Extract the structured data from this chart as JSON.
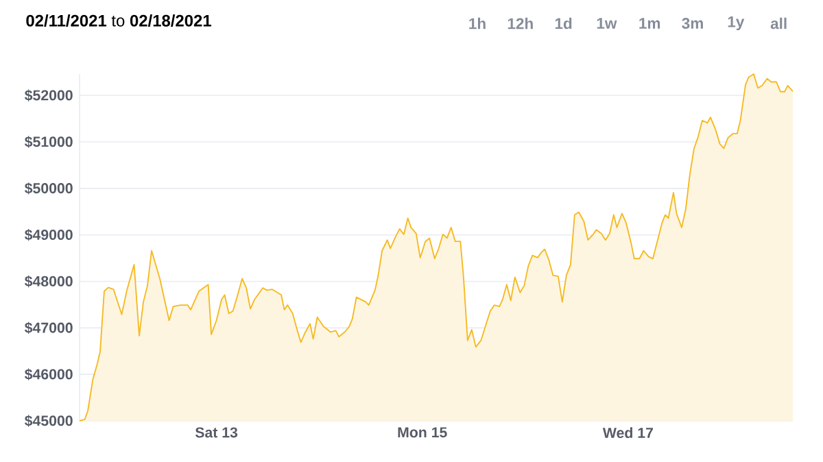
{
  "chart_data": {
    "type": "area",
    "title": "**02/11/2021** to **02/18/2021**",
    "annotations": [
      "1h",
      "12h",
      "1d",
      "1w",
      "1m",
      "3m",
      "1y",
      "all"
    ],
    "x": [
      "2021-02-11T16:05",
      "2021-02-11T17:17",
      "2021-02-11T18:00",
      "2021-02-11T19:12",
      "2021-02-11T20:10",
      "2021-02-11T20:53",
      "2021-02-11T21:50",
      "2021-02-11T22:48",
      "2021-02-12T00:00",
      "2021-02-12T01:55",
      "2021-02-12T03:07",
      "2021-02-12T04:48",
      "2021-02-12T06:00",
      "2021-02-12T06:58",
      "2021-02-12T07:55",
      "2021-02-12T08:53",
      "2021-02-12T10:48",
      "2021-02-12T12:58",
      "2021-02-12T13:55",
      "2021-02-12T15:36",
      "2021-02-12T17:17",
      "2021-02-12T18:00",
      "2021-02-12T19:55",
      "2021-02-12T22:05",
      "2021-02-12T22:48",
      "2021-02-13T00:00",
      "2021-02-13T01:12",
      "2021-02-13T01:55",
      "2021-02-13T02:53",
      "2021-02-13T03:50",
      "2021-02-13T04:48",
      "2021-02-13T06:00",
      "2021-02-13T06:58",
      "2021-02-13T07:55",
      "2021-02-13T08:53",
      "2021-02-13T10:48",
      "2021-02-13T11:46",
      "2021-02-13T12:58",
      "2021-02-13T15:07",
      "2021-02-13T15:50",
      "2021-02-13T16:34",
      "2021-02-13T17:46",
      "2021-02-13T18:43",
      "2021-02-13T19:41",
      "2021-02-13T20:38",
      "2021-02-13T21:50",
      "2021-02-13T22:34",
      "2021-02-13T23:31",
      "2021-02-14T00:58",
      "2021-02-14T02:38",
      "2021-02-14T03:50",
      "2021-02-14T04:34",
      "2021-02-14T06:00",
      "2021-02-14T06:58",
      "2021-02-14T07:41",
      "2021-02-14T08:38",
      "2021-02-14T10:48",
      "2021-02-14T11:31",
      "2021-02-14T12:58",
      "2021-02-14T13:41",
      "2021-02-14T14:38",
      "2021-02-14T15:50",
      "2021-02-14T16:34",
      "2021-02-14T17:46",
      "2021-02-14T18:43",
      "2021-02-14T19:41",
      "2021-02-14T20:38",
      "2021-02-14T21:22",
      "2021-02-14T22:34",
      "2021-02-14T23:31",
      "2021-02-15T00:43",
      "2021-02-15T01:41",
      "2021-02-15T02:53",
      "2021-02-15T03:50",
      "2021-02-15T04:48",
      "2021-02-15T05:46",
      "2021-02-15T06:43",
      "2021-02-15T07:41",
      "2021-02-15T08:53",
      "2021-02-15T09:36",
      "2021-02-15T10:34",
      "2021-02-15T11:31",
      "2021-02-15T12:29",
      "2021-02-15T13:41",
      "2021-02-15T14:38",
      "2021-02-15T15:50",
      "2021-02-15T16:48",
      "2021-02-15T18:00",
      "2021-02-15T18:43",
      "2021-02-15T19:41",
      "2021-02-15T20:38",
      "2021-02-15T21:36",
      "2021-02-15T22:48",
      "2021-02-15T23:46",
      "2021-02-16T00:43",
      "2021-02-16T01:41",
      "2021-02-16T02:53",
      "2021-02-16T03:50",
      "2021-02-16T04:34",
      "2021-02-16T05:31",
      "2021-02-16T06:29",
      "2021-02-16T07:41",
      "2021-02-16T08:38",
      "2021-02-16T09:36",
      "2021-02-16T10:34",
      "2021-02-16T11:31",
      "2021-02-16T12:29",
      "2021-02-16T13:41",
      "2021-02-16T14:38",
      "2021-02-16T15:50",
      "2021-02-16T16:34",
      "2021-02-16T17:46",
      "2021-02-16T18:43",
      "2021-02-16T19:41",
      "2021-02-16T20:38",
      "2021-02-16T21:22",
      "2021-02-16T22:34",
      "2021-02-16T23:31",
      "2021-02-17T00:43",
      "2021-02-17T01:26",
      "2021-02-17T02:38",
      "2021-02-17T03:36",
      "2021-02-17T04:48",
      "2021-02-17T05:46",
      "2021-02-17T06:43",
      "2021-02-17T07:55",
      "2021-02-17T08:38",
      "2021-02-17T09:22",
      "2021-02-17T10:34",
      "2021-02-17T11:17",
      "2021-02-17T12:29",
      "2021-02-17T13:26",
      "2021-02-17T14:24",
      "2021-02-17T15:22",
      "2021-02-17T16:19",
      "2021-02-17T17:17",
      "2021-02-17T18:29",
      "2021-02-17T19:12",
      "2021-02-17T20:24",
      "2021-02-17T21:22",
      "2021-02-17T22:19",
      "2021-02-17T23:17",
      "2021-02-18T00:29",
      "2021-02-18T01:26",
      "2021-02-18T02:10",
      "2021-02-18T03:22",
      "2021-02-18T04:05",
      "2021-02-18T05:17",
      "2021-02-18T06:14",
      "2021-02-18T07:12",
      "2021-02-18T08:24",
      "2021-02-18T09:22",
      "2021-02-18T10:34",
      "2021-02-18T11:31",
      "2021-02-18T12:29",
      "2021-02-18T13:12",
      "2021-02-18T14:24"
    ],
    "values": [
      45000,
      45030,
      45210,
      45900,
      46210,
      46490,
      47790,
      47870,
      47830,
      47290,
      47810,
      48360,
      46830,
      47560,
      47910,
      48660,
      48060,
      47160,
      47460,
      47490,
      47490,
      47390,
      47790,
      47930,
      46860,
      47160,
      47610,
      47710,
      47310,
      47360,
      47660,
      48060,
      47860,
      47410,
      47610,
      47860,
      47810,
      47830,
      47710,
      47390,
      47490,
      47310,
      46990,
      46690,
      46890,
      47090,
      46760,
      47230,
      47030,
      46910,
      46940,
      46810,
      46920,
      47030,
      47190,
      47660,
      47560,
      47490,
      47810,
      48110,
      48660,
      48890,
      48710,
      48960,
      49130,
      49010,
      49360,
      49160,
      49030,
      48510,
      48860,
      48930,
      48490,
      48710,
      49010,
      48930,
      49160,
      48860,
      48860,
      48110,
      46730,
      46960,
      46590,
      46730,
      47010,
      47360,
      47490,
      47460,
      47610,
      47930,
      47590,
      48090,
      47760,
      47910,
      48330,
      48560,
      48510,
      48630,
      48690,
      48460,
      48130,
      48110,
      47560,
      48130,
      48360,
      49430,
      49490,
      49290,
      48890,
      49010,
      49110,
      49030,
      48890,
      49030,
      49430,
      49160,
      49460,
      49260,
      48810,
      48490,
      48490,
      48660,
      48530,
      48490,
      48830,
      49260,
      49430,
      49360,
      49910,
      49460,
      49160,
      49560,
      50310,
      50860,
      51110,
      51460,
      51410,
      51530,
      51260,
      50960,
      50860,
      51090,
      51180,
      51180,
      51460,
      52230,
      52390,
      52460,
      52160,
      52210,
      52360,
      52290,
      52290,
      52080,
      52080,
      52210,
      52090
    ],
    "color": "#f5b921",
    "xlim": [
      "2021-02-11T16:05",
      "2021-02-18T14:24"
    ],
    "xticks": [
      {
        "value": "2021-02-13",
        "label": "Sat 13"
      },
      {
        "value": "2021-02-15",
        "label": "Mon 15"
      },
      {
        "value": "2021-02-17",
        "label": "Wed 17"
      }
    ],
    "yticks": [
      {
        "value": 45000,
        "label": "$45000"
      },
      {
        "value": 46000,
        "label": "$46000"
      },
      {
        "value": 47000,
        "label": "$47000"
      },
      {
        "value": 48000,
        "label": "$48000"
      },
      {
        "value": 49000,
        "label": "$49000"
      },
      {
        "value": 50000,
        "label": "$50000"
      },
      {
        "value": 51000,
        "label": "$51000"
      },
      {
        "value": 52000,
        "label": "$52000"
      }
    ],
    "ylim": [
      45000,
      52460
    ],
    "grid": "y"
  }
}
